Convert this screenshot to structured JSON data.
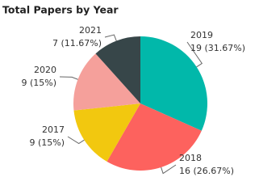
{
  "chart_data": {
    "type": "pie",
    "title": "Total Papers by Year",
    "categories": [
      "2019",
      "2018",
      "2017",
      "2020",
      "2021"
    ],
    "values": [
      19,
      16,
      9,
      9,
      7
    ],
    "value_labels": [
      "19 (31.67%)",
      "16 (26.67%)",
      "9 (15%)",
      "9 (15%)",
      "7 (11.67%)"
    ],
    "colors": [
      "#01b8aa",
      "#fd625e",
      "#f2c80f",
      "#f5a09b",
      "#374649"
    ]
  }
}
